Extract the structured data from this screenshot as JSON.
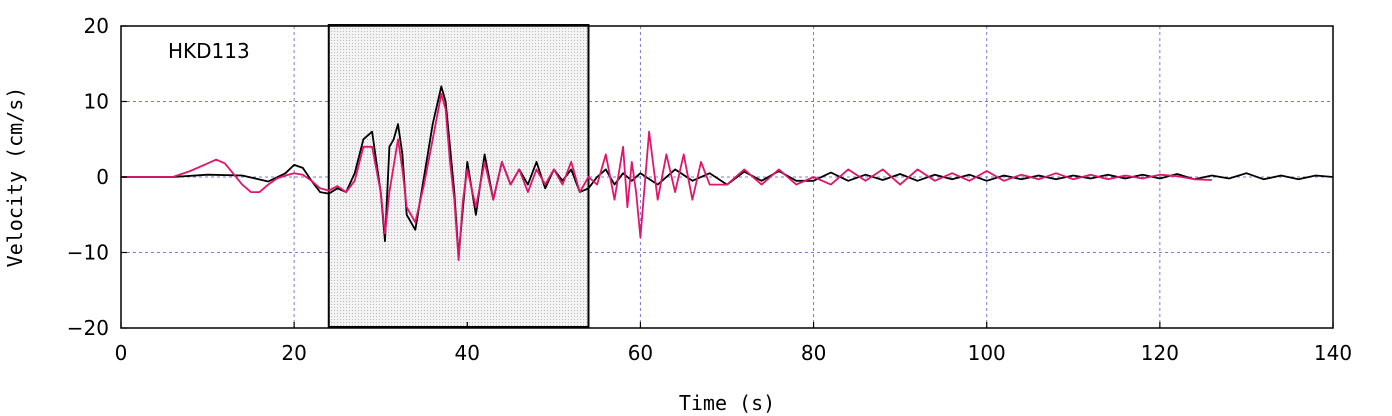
{
  "chart_data": {
    "type": "line",
    "title": "",
    "annotation": "HKD113",
    "xlabel": "Time (s)",
    "ylabel": "Velocity (cm/s)",
    "xlim": [
      0,
      140
    ],
    "ylim": [
      -20,
      20
    ],
    "xticks": [
      0,
      20,
      40,
      60,
      80,
      100,
      120,
      140
    ],
    "yticks": [
      20,
      10,
      0,
      -10,
      -20
    ],
    "xtick_labels": [
      "0",
      "20",
      "40",
      "60",
      "80",
      "100",
      "120",
      "140"
    ],
    "ytick_labels": [
      "20",
      "10",
      "0",
      "−10",
      "−20"
    ],
    "grid": true,
    "highlight_window": {
      "x_start": 24,
      "x_end": 54,
      "y_start": -20,
      "y_end": 20
    },
    "series": [
      {
        "color": "#000000",
        "points": [
          [
            0,
            0
          ],
          [
            6,
            0
          ],
          [
            10,
            0.3
          ],
          [
            14,
            0.2
          ],
          [
            17,
            -0.6
          ],
          [
            19,
            0.5
          ],
          [
            20,
            1.6
          ],
          [
            21,
            1.2
          ],
          [
            22,
            -0.5
          ],
          [
            23,
            -2
          ],
          [
            24,
            -2.2
          ],
          [
            25,
            -1.5
          ],
          [
            26,
            -2
          ],
          [
            27,
            0.5
          ],
          [
            28,
            5
          ],
          [
            29,
            6
          ],
          [
            30,
            -2
          ],
          [
            30.5,
            -8.5
          ],
          [
            31,
            4
          ],
          [
            31.5,
            5
          ],
          [
            32,
            7
          ],
          [
            32.5,
            3
          ],
          [
            33,
            -5
          ],
          [
            34,
            -7
          ],
          [
            35,
            0
          ],
          [
            36,
            7
          ],
          [
            37,
            12
          ],
          [
            37.5,
            10
          ],
          [
            38,
            4
          ],
          [
            38.5,
            -2
          ],
          [
            39,
            -10.5
          ],
          [
            39.5,
            -4
          ],
          [
            40,
            2
          ],
          [
            41,
            -5
          ],
          [
            42,
            3
          ],
          [
            43,
            -3
          ],
          [
            44,
            2
          ],
          [
            45,
            -1
          ],
          [
            46,
            1
          ],
          [
            47,
            -1
          ],
          [
            48,
            2
          ],
          [
            49,
            -1.5
          ],
          [
            50,
            1
          ],
          [
            51,
            -0.5
          ],
          [
            52,
            1
          ],
          [
            53,
            -2
          ],
          [
            54,
            -1.5
          ],
          [
            55,
            0
          ],
          [
            56,
            1
          ],
          [
            57,
            -1
          ],
          [
            58,
            0.5
          ],
          [
            59,
            -0.5
          ],
          [
            60,
            0.5
          ],
          [
            62,
            -1
          ],
          [
            64,
            1
          ],
          [
            66,
            -0.5
          ],
          [
            68,
            0.5
          ],
          [
            70,
            -1
          ],
          [
            72,
            0.7
          ],
          [
            74,
            -0.5
          ],
          [
            76,
            0.8
          ],
          [
            78,
            -0.5
          ],
          [
            80,
            -0.5
          ],
          [
            82,
            0.6
          ],
          [
            84,
            -0.5
          ],
          [
            86,
            0.3
          ],
          [
            88,
            -0.4
          ],
          [
            90,
            0.4
          ],
          [
            92,
            -0.5
          ],
          [
            94,
            0.3
          ],
          [
            96,
            -0.3
          ],
          [
            98,
            0.3
          ],
          [
            100,
            -0.5
          ],
          [
            102,
            0.2
          ],
          [
            104,
            -0.3
          ],
          [
            106,
            0.2
          ],
          [
            108,
            -0.3
          ],
          [
            110,
            0.2
          ],
          [
            112,
            -0.2
          ],
          [
            114,
            0.3
          ],
          [
            116,
            -0.2
          ],
          [
            118,
            0.3
          ],
          [
            120,
            -0.2
          ],
          [
            122,
            0.4
          ],
          [
            124,
            -0.3
          ],
          [
            126,
            0.2
          ],
          [
            128,
            -0.2
          ],
          [
            130,
            0.5
          ],
          [
            132,
            -0.3
          ],
          [
            134,
            0.2
          ],
          [
            136,
            -0.3
          ],
          [
            138,
            0.2
          ],
          [
            140,
            0
          ]
        ]
      },
      {
        "color": "#e0156b",
        "points": [
          [
            0,
            0
          ],
          [
            6,
            0
          ],
          [
            8,
            0.8
          ],
          [
            10,
            1.8
          ],
          [
            11,
            2.3
          ],
          [
            12,
            1.8
          ],
          [
            14,
            -1
          ],
          [
            15,
            -2
          ],
          [
            16,
            -2
          ],
          [
            17,
            -1
          ],
          [
            18,
            -0.2
          ],
          [
            19,
            0.2
          ],
          [
            20,
            0.5
          ],
          [
            21,
            0.3
          ],
          [
            22,
            -0.5
          ],
          [
            23,
            -1.5
          ],
          [
            24,
            -1.8
          ],
          [
            25,
            -1.2
          ],
          [
            26,
            -2
          ],
          [
            27,
            -0.5
          ],
          [
            28,
            4
          ],
          [
            29,
            4
          ],
          [
            30,
            -2
          ],
          [
            30.5,
            -7.5
          ],
          [
            31,
            -2
          ],
          [
            32,
            5
          ],
          [
            32.5,
            1
          ],
          [
            33,
            -4
          ],
          [
            34,
            -6
          ],
          [
            35,
            -1
          ],
          [
            36,
            5
          ],
          [
            37,
            11
          ],
          [
            37.5,
            9
          ],
          [
            38,
            2
          ],
          [
            38.5,
            -3
          ],
          [
            39,
            -11
          ],
          [
            39.5,
            -3
          ],
          [
            40,
            1
          ],
          [
            41,
            -4
          ],
          [
            42,
            2
          ],
          [
            43,
            -3
          ],
          [
            44,
            2
          ],
          [
            45,
            -1
          ],
          [
            46,
            1
          ],
          [
            47,
            -2
          ],
          [
            48,
            1
          ],
          [
            49,
            -1
          ],
          [
            50,
            1
          ],
          [
            51,
            -1
          ],
          [
            52,
            2
          ],
          [
            53,
            -2
          ],
          [
            54,
            0
          ],
          [
            55,
            -1
          ],
          [
            56,
            3
          ],
          [
            57,
            -3
          ],
          [
            58,
            4
          ],
          [
            58.5,
            -4
          ],
          [
            59,
            2
          ],
          [
            59.5,
            -2
          ],
          [
            60,
            -8
          ],
          [
            61,
            6
          ],
          [
            62,
            -3
          ],
          [
            63,
            3
          ],
          [
            64,
            -2
          ],
          [
            65,
            3
          ],
          [
            66,
            -3
          ],
          [
            67,
            2
          ],
          [
            68,
            -1
          ],
          [
            70,
            -1
          ],
          [
            72,
            1
          ],
          [
            74,
            -1
          ],
          [
            76,
            1
          ],
          [
            78,
            -1
          ],
          [
            80,
            0
          ],
          [
            82,
            -1
          ],
          [
            84,
            1
          ],
          [
            86,
            -0.5
          ],
          [
            88,
            1
          ],
          [
            90,
            -1
          ],
          [
            92,
            1
          ],
          [
            94,
            -0.5
          ],
          [
            96,
            0.5
          ],
          [
            98,
            -0.5
          ],
          [
            100,
            0.8
          ],
          [
            102,
            -0.5
          ],
          [
            104,
            0.3
          ],
          [
            106,
            -0.3
          ],
          [
            108,
            0.5
          ],
          [
            110,
            -0.3
          ],
          [
            112,
            0.3
          ],
          [
            114,
            -0.3
          ],
          [
            116,
            0.2
          ],
          [
            118,
            -0.2
          ],
          [
            120,
            0.3
          ],
          [
            122,
            0.1
          ],
          [
            124,
            -0.3
          ],
          [
            126,
            -0.4
          ]
        ]
      }
    ]
  }
}
